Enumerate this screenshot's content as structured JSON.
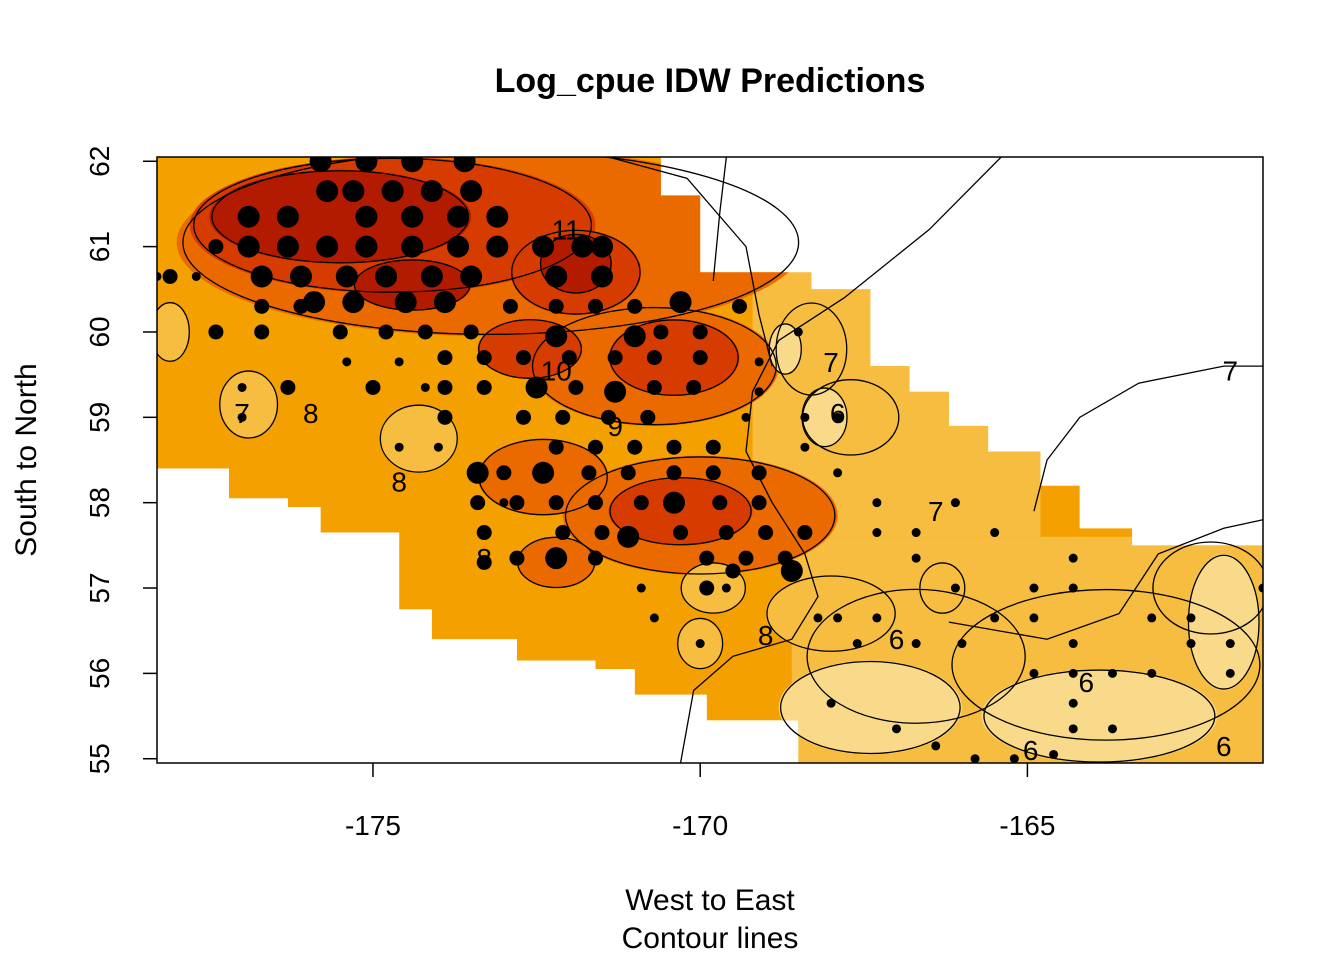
{
  "chart_data": {
    "type": "heatmap",
    "title": "Log_cpue IDW Predictions",
    "xlabel": "West to East",
    "xlabel_sub": "Contour lines",
    "ylabel": "South to North",
    "xlim": [
      -178.3,
      -161.4
    ],
    "ylim": [
      54.95,
      62.05
    ],
    "x_ticks": [
      -175,
      -170,
      -165
    ],
    "y_ticks": [
      55,
      56,
      57,
      58,
      59,
      60,
      61,
      62
    ],
    "x_tick_labels": [
      "-175",
      "-170",
      "-165"
    ],
    "y_tick_labels": [
      "55",
      "56",
      "57",
      "58",
      "59",
      "60",
      "61",
      "62"
    ],
    "colors": {
      "level_10_plus": "#b31b00",
      "level_9_10": "#d63c00",
      "level_8_9": "#ea6a00",
      "level_7_8": "#f4a000",
      "level_6_7": "#f6bd40",
      "level_5_6": "#f9d98a",
      "level_below_5": "#fff2b8",
      "contour": "#000000",
      "points": "#000000"
    },
    "contour_labels": [
      {
        "text": "7",
        "lon": -161.9,
        "lat": 59.55
      },
      {
        "text": "11",
        "lon": -172.05,
        "lat": 61.2
      },
      {
        "text": "10",
        "lon": -172.2,
        "lat": 59.55
      },
      {
        "text": "9",
        "lon": -171.3,
        "lat": 58.9
      },
      {
        "text": "8",
        "lon": -175.95,
        "lat": 59.05
      },
      {
        "text": "8",
        "lon": -174.6,
        "lat": 58.25
      },
      {
        "text": "8",
        "lon": -173.3,
        "lat": 57.35
      },
      {
        "text": "8",
        "lon": -169.0,
        "lat": 56.45
      },
      {
        "text": "7",
        "lon": -177.0,
        "lat": 59.05
      },
      {
        "text": "7",
        "lon": -168.0,
        "lat": 59.65
      },
      {
        "text": "7",
        "lon": -166.4,
        "lat": 57.9
      },
      {
        "text": "6",
        "lon": -167.9,
        "lat": 59.05
      },
      {
        "text": "6",
        "lon": -167.0,
        "lat": 56.4
      },
      {
        "text": "6",
        "lon": -164.1,
        "lat": 55.9
      },
      {
        "text": "6",
        "lon": -164.95,
        "lat": 55.1
      },
      {
        "text": "6",
        "lon": -162.0,
        "lat": 55.15
      }
    ],
    "surface_blobs": [
      {
        "level": 8,
        "lon": -173.2,
        "lat": 61.05,
        "rx": 4.8,
        "ry": 1.1
      },
      {
        "level": 8,
        "lon": -170.7,
        "lat": 59.6,
        "rx": 1.9,
        "ry": 0.7
      },
      {
        "level": 8,
        "lon": -170.0,
        "lat": 57.85,
        "rx": 2.1,
        "ry": 0.7
      },
      {
        "level": 8,
        "lon": -172.4,
        "lat": 58.3,
        "rx": 1.0,
        "ry": 0.45
      },
      {
        "level": 8,
        "lon": -172.2,
        "lat": 57.3,
        "rx": 0.6,
        "ry": 0.3
      },
      {
        "level": 9,
        "lon": -174.7,
        "lat": 61.25,
        "rx": 3.1,
        "ry": 0.8
      },
      {
        "level": 9,
        "lon": -171.9,
        "lat": 60.7,
        "rx": 1.0,
        "ry": 0.5
      },
      {
        "level": 9,
        "lon": -170.4,
        "lat": 59.7,
        "rx": 1.0,
        "ry": 0.45
      },
      {
        "level": 9,
        "lon": -172.6,
        "lat": 59.8,
        "rx": 0.8,
        "ry": 0.35
      },
      {
        "level": 9,
        "lon": -170.3,
        "lat": 57.9,
        "rx": 1.1,
        "ry": 0.4
      },
      {
        "level": 10,
        "lon": -175.5,
        "lat": 61.35,
        "rx": 2.0,
        "ry": 0.55
      },
      {
        "level": 10,
        "lon": -171.9,
        "lat": 60.8,
        "rx": 0.55,
        "ry": 0.35
      },
      {
        "level": 10,
        "lon": -174.4,
        "lat": 60.55,
        "rx": 0.9,
        "ry": 0.3
      },
      {
        "level": 6,
        "lon": -168.3,
        "lat": 59.8,
        "rx": 0.55,
        "ry": 0.55
      },
      {
        "level": 6,
        "lon": -167.7,
        "lat": 59.0,
        "rx": 0.75,
        "ry": 0.45
      },
      {
        "level": 6,
        "lon": -176.9,
        "lat": 59.15,
        "rx": 0.45,
        "ry": 0.4
      },
      {
        "level": 6,
        "lon": -174.3,
        "lat": 58.75,
        "rx": 0.6,
        "ry": 0.4
      },
      {
        "level": 6,
        "lon": -178.1,
        "lat": 60.0,
        "rx": 0.3,
        "ry": 0.35
      },
      {
        "level": 6,
        "lon": -168.0,
        "lat": 56.7,
        "rx": 1.0,
        "ry": 0.45
      },
      {
        "level": 6,
        "lon": -166.7,
        "lat": 56.2,
        "rx": 1.7,
        "ry": 0.8
      },
      {
        "level": 6,
        "lon": -163.8,
        "lat": 56.1,
        "rx": 2.4,
        "ry": 0.9
      },
      {
        "level": 6,
        "lon": -162.2,
        "lat": 57.0,
        "rx": 0.9,
        "ry": 0.55
      },
      {
        "level": 6,
        "lon": -166.3,
        "lat": 57.0,
        "rx": 0.35,
        "ry": 0.3
      },
      {
        "level": 6,
        "lon": -170.0,
        "lat": 56.35,
        "rx": 0.35,
        "ry": 0.3
      },
      {
        "level": 6,
        "lon": -169.8,
        "lat": 57.0,
        "rx": 0.5,
        "ry": 0.3
      },
      {
        "level": 5,
        "lon": -167.4,
        "lat": 55.6,
        "rx": 1.4,
        "ry": 0.55
      },
      {
        "level": 5,
        "lon": -163.9,
        "lat": 55.5,
        "rx": 1.8,
        "ry": 0.55
      },
      {
        "level": 5,
        "lon": -162.0,
        "lat": 56.6,
        "rx": 0.55,
        "ry": 0.8
      },
      {
        "level": 5,
        "lon": -168.1,
        "lat": 59.0,
        "rx": 0.35,
        "ry": 0.35
      },
      {
        "level": 5,
        "lon": -168.7,
        "lat": 59.8,
        "rx": 0.25,
        "ry": 0.3
      }
    ],
    "series": [
      {
        "size": "large",
        "points": [
          [
            -176.9,
            61.35
          ],
          [
            -176.3,
            61.35
          ],
          [
            -175.7,
            61.65
          ],
          [
            -175.3,
            61.65
          ],
          [
            -174.7,
            61.65
          ],
          [
            -174.1,
            61.65
          ],
          [
            -173.5,
            61.65
          ],
          [
            -175.8,
            62.0
          ],
          [
            -175.1,
            62.0
          ],
          [
            -174.4,
            62.0
          ],
          [
            -173.6,
            62.0
          ],
          [
            -176.9,
            61.0
          ],
          [
            -176.3,
            61.0
          ],
          [
            -175.7,
            61.0
          ],
          [
            -175.1,
            61.35
          ],
          [
            -174.4,
            61.35
          ],
          [
            -173.7,
            61.35
          ],
          [
            -173.1,
            61.35
          ],
          [
            -175.1,
            61.0
          ],
          [
            -174.4,
            61.0
          ],
          [
            -173.7,
            61.0
          ],
          [
            -173.1,
            61.0
          ],
          [
            -172.4,
            61.0
          ],
          [
            -171.8,
            61.0
          ],
          [
            -171.5,
            61.0
          ],
          [
            -176.7,
            60.65
          ],
          [
            -176.1,
            60.65
          ],
          [
            -175.4,
            60.65
          ],
          [
            -174.8,
            60.65
          ],
          [
            -174.1,
            60.65
          ],
          [
            -173.5,
            60.65
          ],
          [
            -172.2,
            60.65
          ],
          [
            -171.5,
            60.65
          ],
          [
            -175.9,
            60.35
          ],
          [
            -175.3,
            60.35
          ],
          [
            -174.5,
            60.35
          ],
          [
            -173.9,
            60.35
          ],
          [
            -170.3,
            60.35
          ],
          [
            -172.2,
            59.95
          ],
          [
            -171.3,
            59.3
          ],
          [
            -172.5,
            59.35
          ],
          [
            -171.0,
            59.95
          ],
          [
            -172.4,
            58.35
          ],
          [
            -170.4,
            58.0
          ],
          [
            -171.1,
            57.6
          ],
          [
            -172.2,
            57.35
          ],
          [
            -173.4,
            58.35
          ],
          [
            -168.6,
            57.2
          ]
        ]
      },
      {
        "size": "medium",
        "points": [
          [
            -177.4,
            61.0
          ],
          [
            -176.7,
            60.3
          ],
          [
            -176.1,
            60.3
          ],
          [
            -175.5,
            60.0
          ],
          [
            -174.8,
            60.0
          ],
          [
            -174.2,
            60.0
          ],
          [
            -173.5,
            60.0
          ],
          [
            -178.1,
            60.65
          ],
          [
            -177.4,
            60.0
          ],
          [
            -176.7,
            60.0
          ],
          [
            -172.9,
            60.3
          ],
          [
            -172.2,
            60.3
          ],
          [
            -171.6,
            60.3
          ],
          [
            -171.0,
            60.3
          ],
          [
            -170.6,
            60.0
          ],
          [
            -170.0,
            60.0
          ],
          [
            -169.4,
            60.3
          ],
          [
            -172.7,
            59.7
          ],
          [
            -172.0,
            59.7
          ],
          [
            -171.3,
            59.7
          ],
          [
            -170.7,
            59.7
          ],
          [
            -170.0,
            59.7
          ],
          [
            -171.9,
            59.35
          ],
          [
            -170.7,
            59.35
          ],
          [
            -170.1,
            59.35
          ],
          [
            -173.3,
            59.7
          ],
          [
            -173.9,
            59.7
          ],
          [
            -173.9,
            59.0
          ],
          [
            -172.7,
            59.0
          ],
          [
            -172.1,
            59.0
          ],
          [
            -171.4,
            59.0
          ],
          [
            -170.8,
            59.0
          ],
          [
            -172.2,
            58.65
          ],
          [
            -171.6,
            58.65
          ],
          [
            -171.0,
            58.65
          ],
          [
            -170.4,
            58.65
          ],
          [
            -169.8,
            58.65
          ],
          [
            -173.0,
            58.35
          ],
          [
            -171.7,
            58.35
          ],
          [
            -171.1,
            58.35
          ],
          [
            -170.4,
            58.35
          ],
          [
            -169.8,
            58.35
          ],
          [
            -169.1,
            58.35
          ],
          [
            -173.4,
            58.0
          ],
          [
            -172.8,
            58.0
          ],
          [
            -172.2,
            58.0
          ],
          [
            -171.6,
            58.0
          ],
          [
            -170.9,
            58.0
          ],
          [
            -169.7,
            58.0
          ],
          [
            -169.1,
            58.0
          ],
          [
            -173.3,
            57.65
          ],
          [
            -172.1,
            57.65
          ],
          [
            -171.5,
            57.65
          ],
          [
            -170.3,
            57.65
          ],
          [
            -169.6,
            57.65
          ],
          [
            -169.0,
            57.65
          ],
          [
            -168.4,
            57.65
          ],
          [
            -172.8,
            57.35
          ],
          [
            -171.6,
            57.35
          ],
          [
            -169.9,
            57.35
          ],
          [
            -169.3,
            57.35
          ],
          [
            -168.7,
            57.35
          ],
          [
            -169.5,
            57.2
          ],
          [
            -173.3,
            57.3
          ],
          [
            -176.3,
            59.35
          ],
          [
            -175.0,
            59.35
          ],
          [
            -173.9,
            59.35
          ],
          [
            -173.3,
            59.35
          ],
          [
            -169.9,
            57.0
          ]
        ]
      },
      {
        "size": "small",
        "points": [
          [
            -178.3,
            60.65
          ],
          [
            -177.7,
            60.65
          ],
          [
            -177.0,
            59.35
          ],
          [
            -177.0,
            59.0
          ],
          [
            -175.4,
            59.65
          ],
          [
            -174.6,
            59.65
          ],
          [
            -174.2,
            59.35
          ],
          [
            -174.6,
            58.65
          ],
          [
            -174.0,
            58.65
          ],
          [
            -173.0,
            58.0
          ],
          [
            -169.1,
            59.3
          ],
          [
            -169.1,
            59.65
          ],
          [
            -168.5,
            60.0
          ],
          [
            -167.9,
            59.0
          ],
          [
            -167.9,
            58.35
          ],
          [
            -167.3,
            58.0
          ],
          [
            -166.7,
            57.65
          ],
          [
            -166.7,
            57.35
          ],
          [
            -166.1,
            58.0
          ],
          [
            -165.5,
            57.65
          ],
          [
            -166.1,
            57.0
          ],
          [
            -167.3,
            57.65
          ],
          [
            -166.0,
            56.35
          ],
          [
            -166.7,
            56.35
          ],
          [
            -167.3,
            56.65
          ],
          [
            -167.9,
            56.65
          ],
          [
            -168.2,
            56.65
          ],
          [
            -170.7,
            56.65
          ],
          [
            -170.9,
            57.0
          ],
          [
            -170.0,
            56.35
          ],
          [
            -167.6,
            56.35
          ],
          [
            -168.0,
            55.65
          ],
          [
            -167.0,
            55.35
          ],
          [
            -166.4,
            55.15
          ],
          [
            -165.8,
            55.0
          ],
          [
            -165.2,
            55.0
          ],
          [
            -164.6,
            55.05
          ],
          [
            -164.9,
            56.0
          ],
          [
            -164.9,
            56.65
          ],
          [
            -164.3,
            56.35
          ],
          [
            -164.3,
            56.0
          ],
          [
            -164.3,
            55.65
          ],
          [
            -164.3,
            55.35
          ],
          [
            -163.7,
            55.35
          ],
          [
            -163.7,
            56.0
          ],
          [
            -163.1,
            56.0
          ],
          [
            -162.5,
            56.35
          ],
          [
            -162.5,
            56.65
          ],
          [
            -161.9,
            56.35
          ],
          [
            -161.9,
            56.0
          ],
          [
            -163.1,
            56.65
          ],
          [
            -164.3,
            57.0
          ],
          [
            -164.9,
            57.0
          ],
          [
            -164.3,
            57.35
          ],
          [
            -165.5,
            56.65
          ],
          [
            -161.4,
            57.0
          ],
          [
            -169.6,
            57.0
          ],
          [
            -169.3,
            59.0
          ],
          [
            -168.4,
            59.0
          ],
          [
            -168.4,
            58.65
          ]
        ]
      }
    ]
  }
}
